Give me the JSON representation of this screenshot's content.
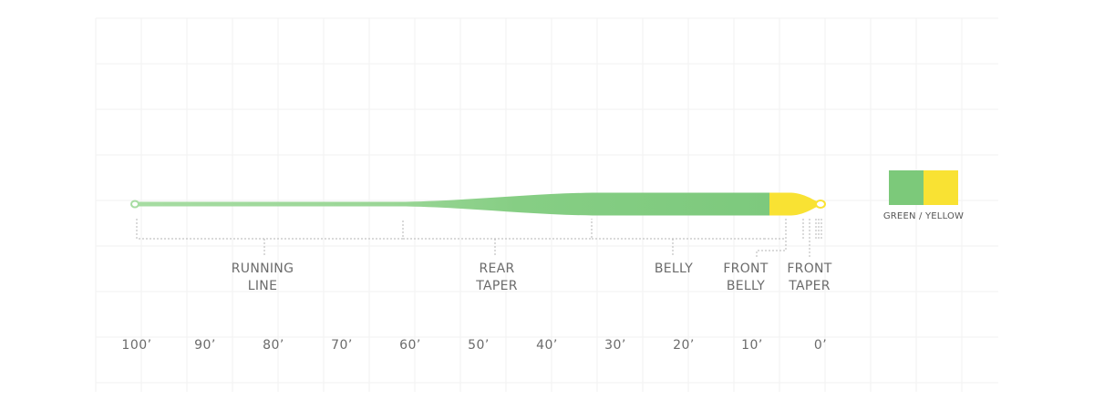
{
  "segments": [
    {
      "line1": "RUNNING",
      "line2": "LINE"
    },
    {
      "line1": "REAR",
      "line2": "TAPER"
    },
    {
      "line1": "BELLY",
      "line2": ""
    },
    {
      "line1": "FRONT",
      "line2": "BELLY"
    },
    {
      "line1": "FRONT",
      "line2": "TAPER"
    }
  ],
  "scale": {
    "ticks": [
      "100’",
      "90’",
      "80’",
      "70’",
      "60’",
      "50’",
      "40’",
      "30’",
      "20’",
      "10’",
      "0’"
    ]
  },
  "swatch": {
    "label": "GREEN / YELLOW",
    "colors": {
      "green": "#7cc97a",
      "yellow": "#f9e233"
    }
  },
  "colors": {
    "running_line": "#9fd99b",
    "taper_belly": "#7dc97d",
    "tip": "#f9e233",
    "dashes": "#b5b5b5",
    "grid": "#f2f2f2"
  }
}
